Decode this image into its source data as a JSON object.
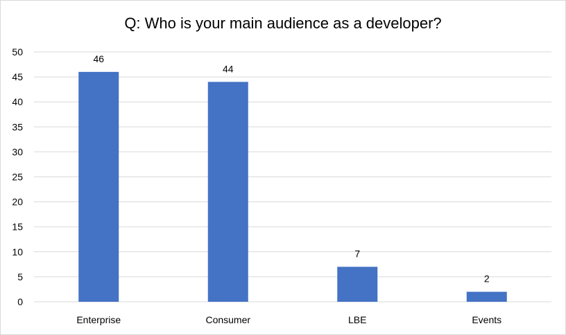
{
  "chart_data": {
    "type": "bar",
    "title": "Q: Who is your main audience as a developer?",
    "categories": [
      "Enterprise",
      "Consumer",
      "LBE",
      "Events"
    ],
    "values": [
      46,
      44,
      7,
      2
    ],
    "ylim": [
      0,
      50
    ],
    "yticks": [
      "0",
      "5",
      "10",
      "15",
      "20",
      "25",
      "30",
      "35",
      "40",
      "45",
      "50"
    ],
    "xlabel": "",
    "ylabel": "",
    "grid": true,
    "legend": "none",
    "bar_color": "#4472c4",
    "grid_color": "#d9d9d9"
  }
}
